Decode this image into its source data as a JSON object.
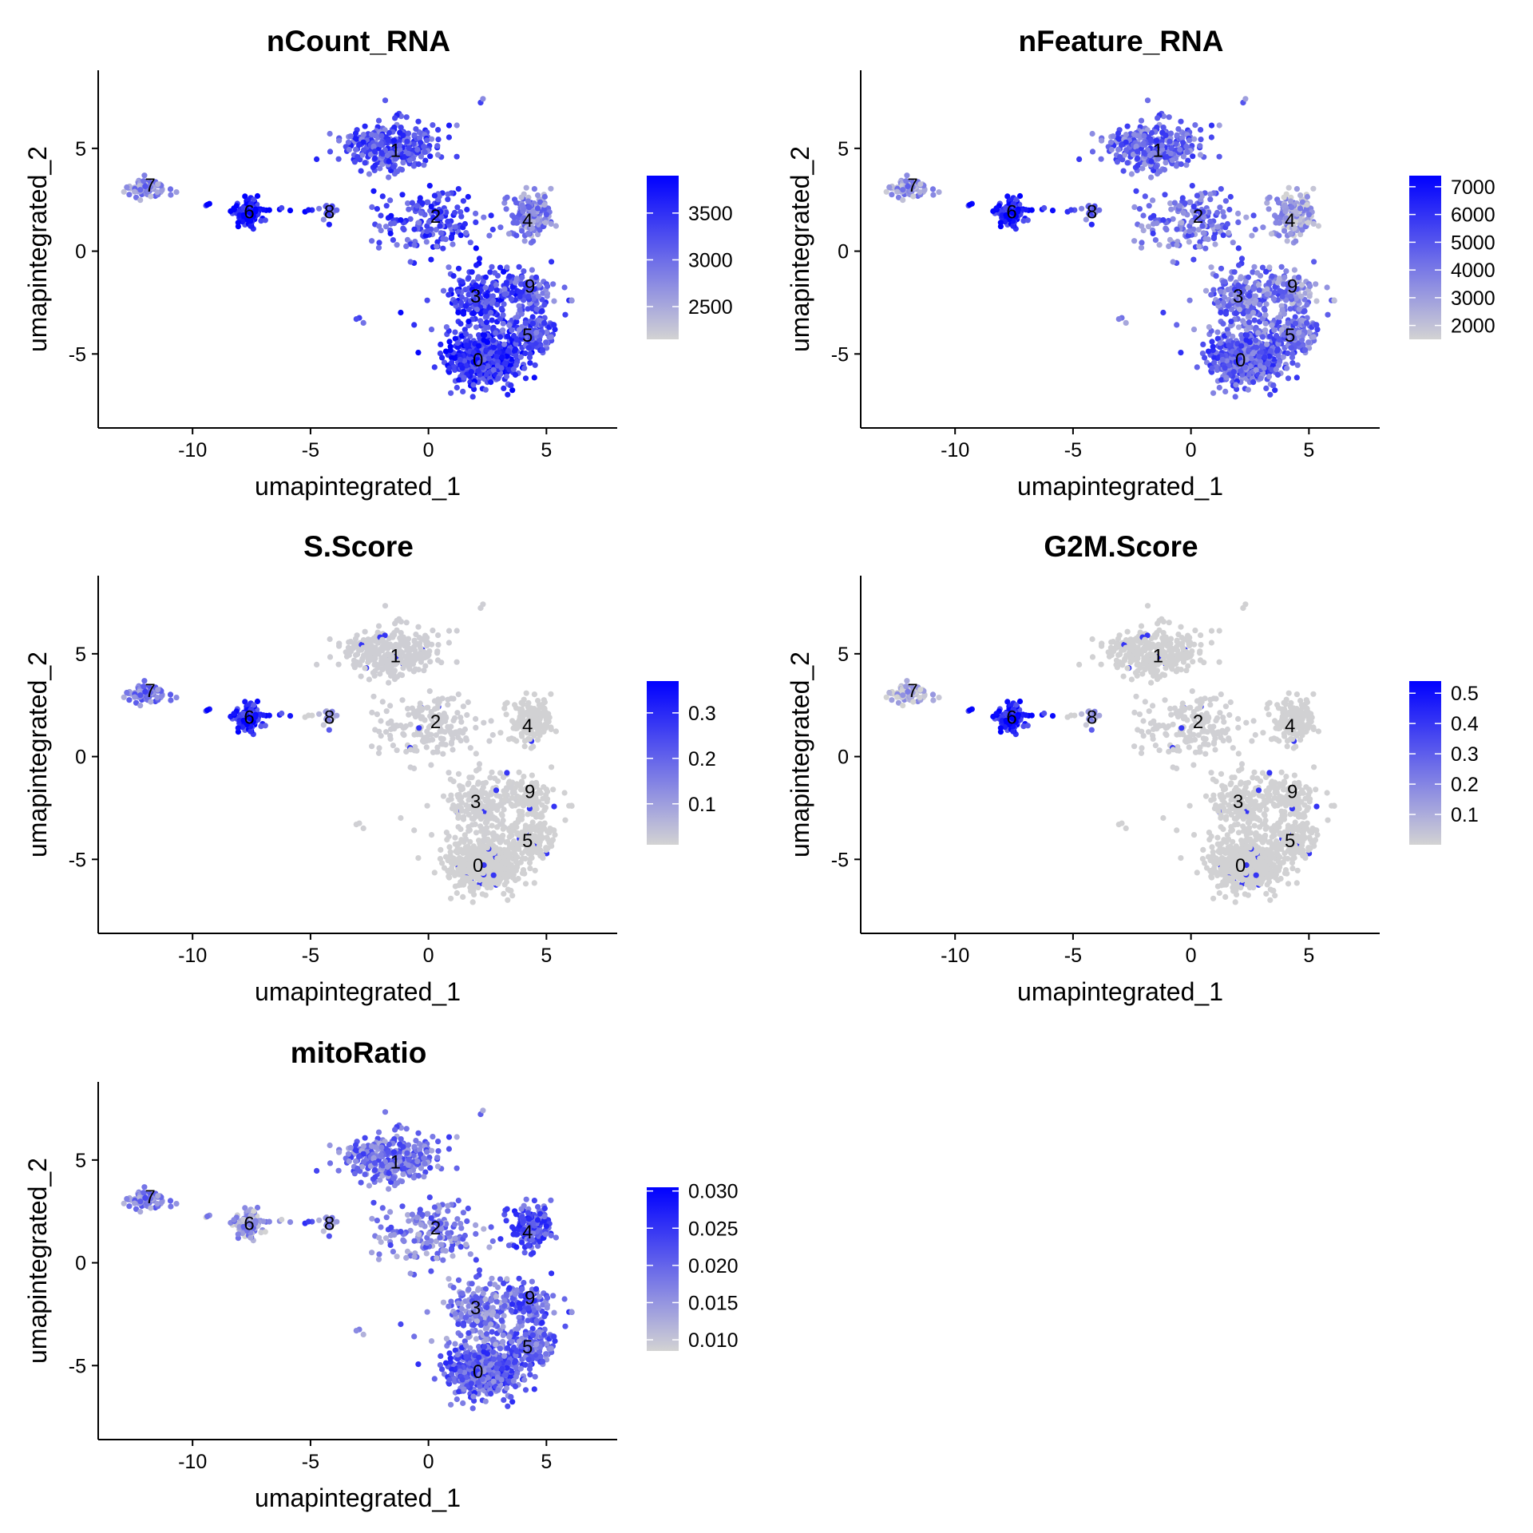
{
  "chart_data": [
    {
      "type": "scatter",
      "title": "nCount_RNA",
      "xlabel": "umapintegrated_1",
      "ylabel": "umapintegrated_2",
      "xlim": [
        -14,
        8
      ],
      "ylim": [
        -8.6,
        8.8
      ],
      "xticks": [
        -10,
        -5,
        0,
        5
      ],
      "yticks": [
        -5,
        0,
        5
      ],
      "legend": {
        "placement": "right",
        "ticks": [
          2500,
          3000,
          3500
        ],
        "min": 2150,
        "max": 3900,
        "low_color": "#d3d3d3",
        "high_color": "#0000ff"
      },
      "cluster_labels": [
        {
          "label": "0",
          "x": 2.1,
          "y": -5.3
        },
        {
          "label": "1",
          "x": -1.4,
          "y": 4.9
        },
        {
          "label": "2",
          "x": 0.3,
          "y": 1.7
        },
        {
          "label": "3",
          "x": 2.0,
          "y": -2.2
        },
        {
          "label": "4",
          "x": 4.2,
          "y": 1.5
        },
        {
          "label": "5",
          "x": 4.2,
          "y": -4.1
        },
        {
          "label": "6",
          "x": -7.6,
          "y": 1.9
        },
        {
          "label": "7",
          "x": -11.8,
          "y": 3.2
        },
        {
          "label": "8",
          "x": -4.2,
          "y": 1.9
        },
        {
          "label": "9",
          "x": 4.3,
          "y": -1.7
        }
      ],
      "cluster_levels": [
        0.75,
        0.6,
        0.65,
        0.7,
        0.35,
        0.6,
        0.9,
        0.35,
        0.6,
        0.55
      ]
    },
    {
      "type": "scatter",
      "title": "nFeature_RNA",
      "xlabel": "umapintegrated_1",
      "ylabel": "umapintegrated_2",
      "xlim": [
        -14,
        8
      ],
      "ylim": [
        -8.6,
        8.8
      ],
      "xticks": [
        -10,
        -5,
        0,
        5
      ],
      "yticks": [
        -5,
        0,
        5
      ],
      "legend": {
        "placement": "right",
        "ticks": [
          2000,
          3000,
          4000,
          5000,
          6000,
          7000
        ],
        "min": 1500,
        "max": 7400,
        "low_color": "#d3d3d3",
        "high_color": "#0000ff"
      },
      "cluster_labels": [
        {
          "label": "0",
          "x": 2.1,
          "y": -5.3
        },
        {
          "label": "1",
          "x": -1.4,
          "y": 4.9
        },
        {
          "label": "2",
          "x": 0.3,
          "y": 1.7
        },
        {
          "label": "3",
          "x": 2.0,
          "y": -2.2
        },
        {
          "label": "4",
          "x": 4.2,
          "y": 1.5
        },
        {
          "label": "5",
          "x": 4.2,
          "y": -4.1
        },
        {
          "label": "6",
          "x": -7.6,
          "y": 1.9
        },
        {
          "label": "7",
          "x": -11.8,
          "y": 3.2
        },
        {
          "label": "8",
          "x": -4.2,
          "y": 1.9
        },
        {
          "label": "9",
          "x": 4.3,
          "y": -1.7
        }
      ],
      "cluster_levels": [
        0.55,
        0.5,
        0.45,
        0.45,
        0.2,
        0.45,
        0.85,
        0.3,
        0.55,
        0.35
      ]
    },
    {
      "type": "scatter",
      "title": "S.Score",
      "xlabel": "umapintegrated_1",
      "ylabel": "umapintegrated_2",
      "xlim": [
        -14,
        8
      ],
      "ylim": [
        -8.6,
        8.8
      ],
      "xticks": [
        -10,
        -5,
        0,
        5
      ],
      "yticks": [
        -5,
        0,
        5
      ],
      "legend": {
        "placement": "right",
        "ticks": [
          0.1,
          0.2,
          0.3
        ],
        "min": 0.01,
        "max": 0.37,
        "low_color": "#d3d3d3",
        "high_color": "#0000ff"
      },
      "cluster_labels": [
        {
          "label": "0",
          "x": 2.1,
          "y": -5.3
        },
        {
          "label": "1",
          "x": -1.4,
          "y": 4.9
        },
        {
          "label": "2",
          "x": 0.3,
          "y": 1.7
        },
        {
          "label": "3",
          "x": 2.0,
          "y": -2.2
        },
        {
          "label": "4",
          "x": 4.2,
          "y": 1.5
        },
        {
          "label": "5",
          "x": 4.2,
          "y": -4.1
        },
        {
          "label": "6",
          "x": -7.6,
          "y": 1.9
        },
        {
          "label": "7",
          "x": -11.8,
          "y": 3.2
        },
        {
          "label": "8",
          "x": -4.2,
          "y": 1.9
        },
        {
          "label": "9",
          "x": 4.3,
          "y": -1.7
        }
      ],
      "cluster_levels": [
        0.02,
        0.05,
        0.05,
        0.03,
        0.02,
        0.02,
        0.8,
        0.45,
        0.3,
        0.02
      ]
    },
    {
      "type": "scatter",
      "title": "G2M.Score",
      "xlabel": "umapintegrated_1",
      "ylabel": "umapintegrated_2",
      "xlim": [
        -14,
        8
      ],
      "ylim": [
        -8.6,
        8.8
      ],
      "xticks": [
        -10,
        -5,
        0,
        5
      ],
      "yticks": [
        -5,
        0,
        5
      ],
      "legend": {
        "placement": "right",
        "ticks": [
          0.1,
          0.2,
          0.3,
          0.4,
          0.5
        ],
        "min": 0.0,
        "max": 0.54,
        "low_color": "#d3d3d3",
        "high_color": "#0000ff"
      },
      "cluster_labels": [
        {
          "label": "0",
          "x": 2.1,
          "y": -5.3
        },
        {
          "label": "1",
          "x": -1.4,
          "y": 4.9
        },
        {
          "label": "2",
          "x": 0.3,
          "y": 1.7
        },
        {
          "label": "3",
          "x": 2.0,
          "y": -2.2
        },
        {
          "label": "4",
          "x": 4.2,
          "y": 1.5
        },
        {
          "label": "5",
          "x": 4.2,
          "y": -4.1
        },
        {
          "label": "6",
          "x": -7.6,
          "y": 1.9
        },
        {
          "label": "7",
          "x": -11.8,
          "y": 3.2
        },
        {
          "label": "8",
          "x": -4.2,
          "y": 1.9
        },
        {
          "label": "9",
          "x": 4.3,
          "y": -1.7
        }
      ],
      "cluster_levels": [
        0.02,
        0.02,
        0.03,
        0.02,
        0.02,
        0.02,
        0.85,
        0.15,
        0.3,
        0.02
      ]
    },
    {
      "type": "scatter",
      "title": "mitoRatio",
      "xlabel": "umapintegrated_1",
      "ylabel": "umapintegrated_2",
      "xlim": [
        -14,
        8
      ],
      "ylim": [
        -8.6,
        8.8
      ],
      "xticks": [
        -10,
        -5,
        0,
        5
      ],
      "yticks": [
        -5,
        0,
        5
      ],
      "legend": {
        "placement": "right",
        "ticks": [
          0.01,
          0.015,
          0.02,
          0.025,
          0.03
        ],
        "tick_labels": [
          "0.010",
          "0.015",
          "0.020",
          "0.025",
          "0.030"
        ],
        "min": 0.0085,
        "max": 0.0305,
        "low_color": "#d3d3d3",
        "high_color": "#0000ff"
      },
      "cluster_labels": [
        {
          "label": "0",
          "x": 2.1,
          "y": -5.3
        },
        {
          "label": "1",
          "x": -1.4,
          "y": 4.9
        },
        {
          "label": "2",
          "x": 0.3,
          "y": 1.7
        },
        {
          "label": "3",
          "x": 2.0,
          "y": -2.2
        },
        {
          "label": "4",
          "x": 4.2,
          "y": 1.5
        },
        {
          "label": "5",
          "x": 4.2,
          "y": -4.1
        },
        {
          "label": "6",
          "x": -7.6,
          "y": 1.9
        },
        {
          "label": "7",
          "x": -11.8,
          "y": 3.2
        },
        {
          "label": "8",
          "x": -4.2,
          "y": 1.9
        },
        {
          "label": "9",
          "x": 4.3,
          "y": -1.7
        }
      ],
      "cluster_levels": [
        0.55,
        0.45,
        0.4,
        0.4,
        0.6,
        0.5,
        0.25,
        0.4,
        0.35,
        0.55
      ]
    }
  ]
}
